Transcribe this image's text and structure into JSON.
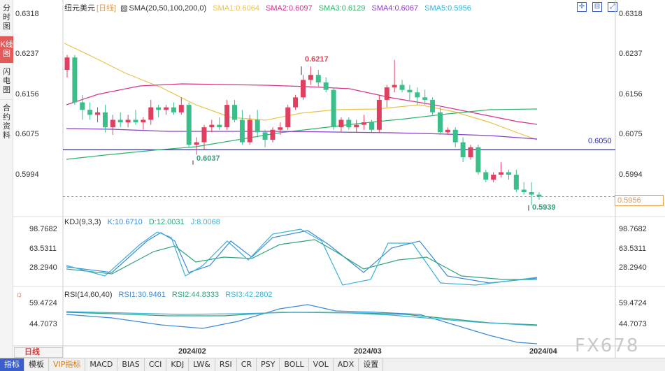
{
  "sidebar": {
    "tabs": [
      {
        "label": "分时图",
        "active": false
      },
      {
        "label": "K线图",
        "active": true
      },
      {
        "label": "闪电图",
        "active": false
      },
      {
        "label": "合约资料",
        "active": false
      }
    ]
  },
  "main_legend": {
    "instrument": "纽元美元",
    "period": "[日线]",
    "sma_title": "SMA(20,50,100,200,0)",
    "sma1": "SMA1:0.6064",
    "sma2": "SMA2:0.6097",
    "sma3": "SMA3:0.6129",
    "sma4": "SMA4:0.6067",
    "sma5": "SMA5:0.5956",
    "colors": {
      "sma1": "#e8c34a",
      "sma2": "#d9308a",
      "sma3": "#2fb36a",
      "sma4": "#8a3fc8",
      "sma5": "#3ab0d8"
    }
  },
  "price_axis": {
    "labels": [
      "0.6318",
      "0.6237",
      "0.6156",
      "0.6075",
      "0.5994"
    ],
    "ymin": 0.593,
    "ymax": 0.6325
  },
  "annotations": {
    "high": "0.6217",
    "low1": "0.6037",
    "low2": "0.5939",
    "ref_line": "0.6050",
    "current_price": "0.5956"
  },
  "kdj": {
    "title": "KDJ(9,3,3)",
    "k": "K:10.6710",
    "d": "D:12.0031",
    "j": "J:8.0068",
    "axis": [
      "98.7682",
      "63.5311",
      "28.2940"
    ]
  },
  "rsi": {
    "title": "RSI(14,60,40)",
    "rsi1": "RSI1:30.9461",
    "rsi2": "RSI2:44.8333",
    "rsi3": "RSI3:42.2802",
    "axis": [
      "59.4724",
      "44.7073"
    ]
  },
  "x_axis": {
    "period_button": "日线",
    "dates": [
      "2024/02",
      "2024/03",
      "2024/04"
    ]
  },
  "bottom_tabs": [
    "指标",
    "模板",
    "VIP指标",
    "MACD",
    "BIAS",
    "CCI",
    "KDJ",
    "LW&",
    "RSI",
    "CR",
    "PSY",
    "BOLL",
    "VOL",
    "ADX",
    "设置"
  ],
  "watermark": "FX678",
  "chart_data": {
    "type": "candlestick",
    "candles": [
      [
        0.621,
        0.624,
        0.6195,
        0.6235
      ],
      [
        0.6235,
        0.624,
        0.614,
        0.6145
      ],
      [
        0.6145,
        0.616,
        0.611,
        0.613
      ],
      [
        0.613,
        0.6145,
        0.611,
        0.612
      ],
      [
        0.612,
        0.6135,
        0.6105,
        0.6125
      ],
      [
        0.6125,
        0.614,
        0.6085,
        0.6095
      ],
      [
        0.6095,
        0.612,
        0.608,
        0.611
      ],
      [
        0.611,
        0.6125,
        0.6095,
        0.6105
      ],
      [
        0.6105,
        0.612,
        0.6095,
        0.611
      ],
      [
        0.611,
        0.613,
        0.61,
        0.6105
      ],
      [
        0.6105,
        0.6115,
        0.609,
        0.611
      ],
      [
        0.611,
        0.615,
        0.61,
        0.6135
      ],
      [
        0.6135,
        0.614,
        0.6115,
        0.613
      ],
      [
        0.613,
        0.614,
        0.612,
        0.6135
      ],
      [
        0.6135,
        0.6145,
        0.612,
        0.6125
      ],
      [
        0.6125,
        0.6155,
        0.612,
        0.614
      ],
      [
        0.614,
        0.6145,
        0.6055,
        0.606
      ],
      [
        0.606,
        0.6075,
        0.604,
        0.6065
      ],
      [
        0.6065,
        0.61,
        0.605,
        0.6095
      ],
      [
        0.6095,
        0.611,
        0.6085,
        0.61
      ],
      [
        0.61,
        0.6115,
        0.609,
        0.6095
      ],
      [
        0.6095,
        0.615,
        0.609,
        0.614
      ],
      [
        0.614,
        0.615,
        0.6105,
        0.611
      ],
      [
        0.611,
        0.613,
        0.606,
        0.6065
      ],
      [
        0.6065,
        0.612,
        0.606,
        0.611
      ],
      [
        0.611,
        0.613,
        0.6075,
        0.6085
      ],
      [
        0.6085,
        0.609,
        0.6055,
        0.607
      ],
      [
        0.607,
        0.6095,
        0.6065,
        0.609
      ],
      [
        0.609,
        0.6105,
        0.608,
        0.6095
      ],
      [
        0.6095,
        0.614,
        0.609,
        0.6135
      ],
      [
        0.6135,
        0.616,
        0.613,
        0.6155
      ],
      [
        0.6155,
        0.62,
        0.615,
        0.619
      ],
      [
        0.619,
        0.6217,
        0.618,
        0.62
      ],
      [
        0.62,
        0.621,
        0.6175,
        0.6185
      ],
      [
        0.6185,
        0.6195,
        0.6165,
        0.617
      ],
      [
        0.617,
        0.6175,
        0.609,
        0.6095
      ],
      [
        0.6095,
        0.6115,
        0.6085,
        0.611
      ],
      [
        0.611,
        0.6115,
        0.609,
        0.6095
      ],
      [
        0.6095,
        0.611,
        0.6085,
        0.61
      ],
      [
        0.61,
        0.612,
        0.609,
        0.6105
      ],
      [
        0.6105,
        0.611,
        0.6085,
        0.609
      ],
      [
        0.609,
        0.616,
        0.6085,
        0.615
      ],
      [
        0.615,
        0.618,
        0.6135,
        0.6175
      ],
      [
        0.6175,
        0.623,
        0.6165,
        0.618
      ],
      [
        0.618,
        0.619,
        0.6165,
        0.617
      ],
      [
        0.617,
        0.618,
        0.615,
        0.6165
      ],
      [
        0.6165,
        0.6175,
        0.614,
        0.6155
      ],
      [
        0.6155,
        0.617,
        0.614,
        0.615
      ],
      [
        0.615,
        0.6155,
        0.612,
        0.6125
      ],
      [
        0.6125,
        0.6135,
        0.608,
        0.6085
      ],
      [
        0.6085,
        0.6095,
        0.608,
        0.609
      ],
      [
        0.609,
        0.6095,
        0.6055,
        0.6065
      ],
      [
        0.6065,
        0.6075,
        0.6025,
        0.6035
      ],
      [
        0.6035,
        0.606,
        0.603,
        0.6055
      ],
      [
        0.6055,
        0.606,
        0.6,
        0.6005
      ],
      [
        0.6005,
        0.601,
        0.5985,
        0.599
      ],
      [
        0.599,
        0.6005,
        0.5985,
        0.6
      ],
      [
        0.6,
        0.6025,
        0.5995,
        0.6005
      ],
      [
        0.6005,
        0.601,
        0.599,
        0.6
      ],
      [
        0.6,
        0.601,
        0.5965,
        0.597
      ],
      [
        0.597,
        0.5985,
        0.596,
        0.5965
      ],
      [
        0.5965,
        0.5985,
        0.5939,
        0.596
      ],
      [
        0.596,
        0.5965,
        0.595,
        0.5956
      ]
    ]
  }
}
